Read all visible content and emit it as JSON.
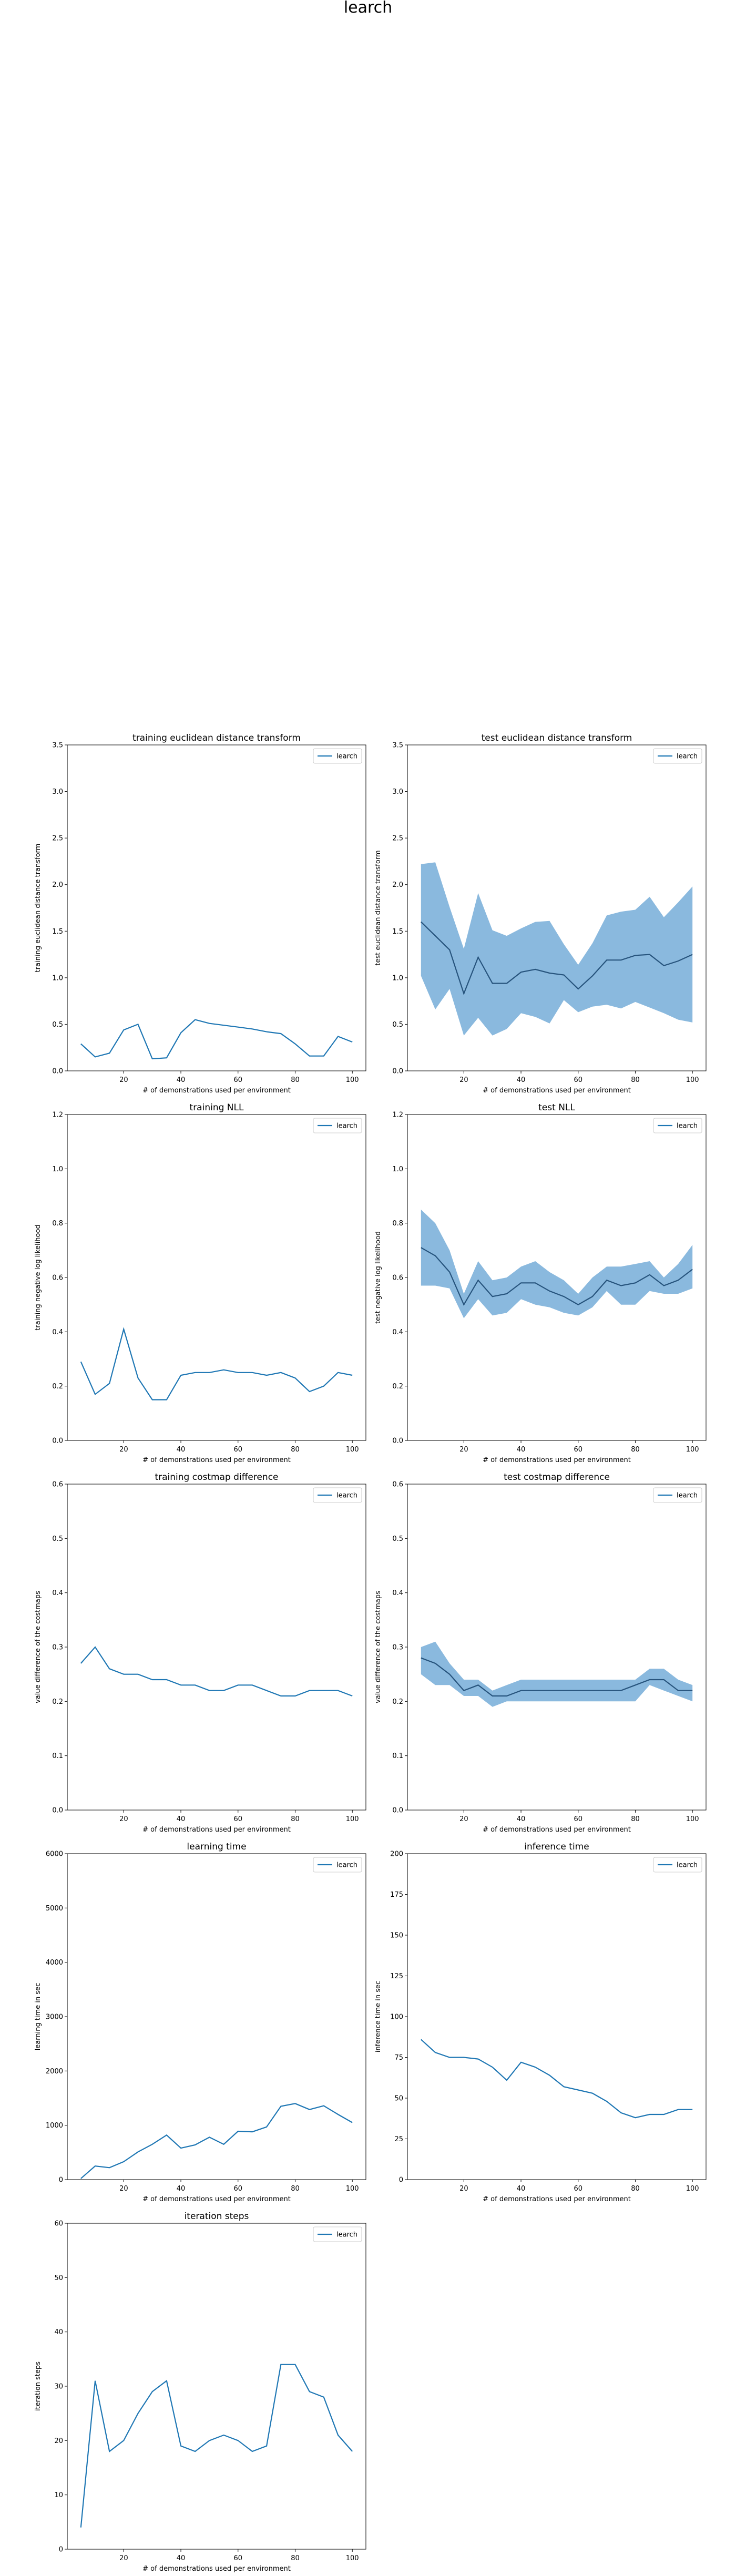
{
  "suptitle": "learch",
  "colors": {
    "line": "#1f77b4",
    "band": "#8ab9de",
    "mean": "#27547d",
    "axis": "#000000"
  },
  "chart_data": [
    {
      "type": "line",
      "title": "training euclidean distance transform",
      "xlabel": "# of demonstrations used per environment",
      "ylabel": "training euclidean distance transform",
      "xlim": [
        0.25,
        104.75
      ],
      "ylim": [
        0,
        3.5
      ],
      "xticks": [
        20,
        40,
        60,
        80,
        100
      ],
      "yticks": [
        0.0,
        0.5,
        1.0,
        1.5,
        2.0,
        2.5,
        3.0,
        3.5
      ],
      "ytick_labels": [
        "0.0",
        "0.5",
        "1.0",
        "1.5",
        "2.0",
        "2.5",
        "3.0",
        "3.5"
      ],
      "legend": "top-right",
      "series": [
        {
          "name": "learch",
          "x": [
            5,
            10,
            15,
            20,
            25,
            30,
            35,
            40,
            45,
            50,
            55,
            60,
            65,
            70,
            75,
            80,
            85,
            90,
            95,
            100
          ],
          "y": [
            0.29,
            0.15,
            0.19,
            0.44,
            0.5,
            0.13,
            0.14,
            0.41,
            0.55,
            0.51,
            0.49,
            0.47,
            0.45,
            0.42,
            0.4,
            0.29,
            0.16,
            0.16,
            0.37,
            0.31
          ]
        }
      ]
    },
    {
      "type": "area",
      "title": "test euclidean distance transform",
      "xlabel": "# of demonstrations used per environment",
      "ylabel": "test euclidean distance transform",
      "xlim": [
        0.25,
        104.75
      ],
      "ylim": [
        0,
        3.5
      ],
      "xticks": [
        20,
        40,
        60,
        80,
        100
      ],
      "yticks": [
        0.0,
        0.5,
        1.0,
        1.5,
        2.0,
        2.5,
        3.0,
        3.5
      ],
      "ytick_labels": [
        "0.0",
        "0.5",
        "1.0",
        "1.5",
        "2.0",
        "2.5",
        "3.0",
        "3.5"
      ],
      "legend": "top-right",
      "series": [
        {
          "name": "learch",
          "x": [
            5,
            10,
            15,
            20,
            25,
            30,
            35,
            40,
            45,
            50,
            55,
            60,
            65,
            70,
            75,
            80,
            85,
            90,
            95,
            100
          ],
          "y": [
            1.6,
            1.45,
            1.3,
            0.83,
            1.22,
            0.94,
            0.94,
            1.06,
            1.09,
            1.05,
            1.03,
            0.88,
            1.02,
            1.19,
            1.19,
            1.24,
            1.25,
            1.13,
            1.18,
            1.25
          ],
          "lower": [
            1.02,
            0.66,
            0.88,
            0.38,
            0.57,
            0.38,
            0.45,
            0.62,
            0.58,
            0.51,
            0.76,
            0.63,
            0.69,
            0.71,
            0.67,
            0.74,
            0.68,
            0.62,
            0.55,
            0.52
          ],
          "upper": [
            2.22,
            2.24,
            1.76,
            1.31,
            1.91,
            1.51,
            1.45,
            1.53,
            1.6,
            1.61,
            1.36,
            1.14,
            1.37,
            1.67,
            1.71,
            1.73,
            1.87,
            1.65,
            1.81,
            1.98
          ]
        }
      ]
    },
    {
      "type": "line",
      "title": "training NLL",
      "xlabel": "# of demonstrations used per environment",
      "ylabel": "training negative log likelihood",
      "xlim": [
        0.25,
        104.75
      ],
      "ylim": [
        0,
        1.2
      ],
      "xticks": [
        20,
        40,
        60,
        80,
        100
      ],
      "yticks": [
        0.0,
        0.2,
        0.4,
        0.6,
        0.8,
        1.0,
        1.2
      ],
      "ytick_labels": [
        "0.0",
        "0.2",
        "0.4",
        "0.6",
        "0.8",
        "1.0",
        "1.2"
      ],
      "legend": "top-right",
      "series": [
        {
          "name": "learch",
          "x": [
            5,
            10,
            15,
            20,
            25,
            30,
            35,
            40,
            45,
            50,
            55,
            60,
            65,
            70,
            75,
            80,
            85,
            90,
            95,
            100
          ],
          "y": [
            0.29,
            0.17,
            0.21,
            0.41,
            0.23,
            0.15,
            0.15,
            0.24,
            0.25,
            0.25,
            0.26,
            0.25,
            0.25,
            0.24,
            0.25,
            0.23,
            0.18,
            0.2,
            0.25,
            0.24
          ]
        }
      ]
    },
    {
      "type": "area",
      "title": "test NLL",
      "xlabel": "# of demonstrations used per environment",
      "ylabel": "test negative log likelihood",
      "xlim": [
        0.25,
        104.75
      ],
      "ylim": [
        0,
        1.2
      ],
      "xticks": [
        20,
        40,
        60,
        80,
        100
      ],
      "yticks": [
        0.0,
        0.2,
        0.4,
        0.6,
        0.8,
        1.0,
        1.2
      ],
      "ytick_labels": [
        "0.0",
        "0.2",
        "0.4",
        "0.6",
        "0.8",
        "1.0",
        "1.2"
      ],
      "legend": "top-right",
      "series": [
        {
          "name": "learch",
          "x": [
            5,
            10,
            15,
            20,
            25,
            30,
            35,
            40,
            45,
            50,
            55,
            60,
            65,
            70,
            75,
            80,
            85,
            90,
            95,
            100
          ],
          "y": [
            0.71,
            0.68,
            0.62,
            0.5,
            0.59,
            0.53,
            0.54,
            0.58,
            0.58,
            0.55,
            0.53,
            0.5,
            0.53,
            0.59,
            0.57,
            0.58,
            0.61,
            0.57,
            0.59,
            0.63
          ],
          "lower": [
            0.57,
            0.57,
            0.56,
            0.45,
            0.52,
            0.46,
            0.47,
            0.52,
            0.5,
            0.49,
            0.47,
            0.46,
            0.49,
            0.55,
            0.5,
            0.5,
            0.55,
            0.54,
            0.54,
            0.56
          ],
          "upper": [
            0.85,
            0.8,
            0.7,
            0.54,
            0.66,
            0.59,
            0.6,
            0.64,
            0.66,
            0.62,
            0.59,
            0.54,
            0.6,
            0.64,
            0.64,
            0.65,
            0.66,
            0.6,
            0.65,
            0.72
          ]
        }
      ]
    },
    {
      "type": "line",
      "title": "training costmap difference",
      "xlabel": "# of demonstrations used per environment",
      "ylabel": "value difference of the costmaps",
      "xlim": [
        0.25,
        104.75
      ],
      "ylim": [
        0,
        0.6
      ],
      "xticks": [
        20,
        40,
        60,
        80,
        100
      ],
      "yticks": [
        0.0,
        0.1,
        0.2,
        0.3,
        0.4,
        0.5,
        0.6
      ],
      "ytick_labels": [
        "0.0",
        "0.1",
        "0.2",
        "0.3",
        "0.4",
        "0.5",
        "0.6"
      ],
      "legend": "top-right",
      "series": [
        {
          "name": "learch",
          "x": [
            5,
            10,
            15,
            20,
            25,
            30,
            35,
            40,
            45,
            50,
            55,
            60,
            65,
            70,
            75,
            80,
            85,
            90,
            95,
            100
          ],
          "y": [
            0.27,
            0.3,
            0.26,
            0.25,
            0.25,
            0.24,
            0.24,
            0.23,
            0.23,
            0.22,
            0.22,
            0.23,
            0.23,
            0.22,
            0.21,
            0.21,
            0.22,
            0.22,
            0.22,
            0.21
          ]
        }
      ]
    },
    {
      "type": "area",
      "title": "test costmap difference",
      "xlabel": "# of demonstrations used per environment",
      "ylabel": "value difference of the costmaps",
      "xlim": [
        0.25,
        104.75
      ],
      "ylim": [
        0,
        0.6
      ],
      "xticks": [
        20,
        40,
        60,
        80,
        100
      ],
      "yticks": [
        0.0,
        0.1,
        0.2,
        0.3,
        0.4,
        0.5,
        0.6
      ],
      "ytick_labels": [
        "0.0",
        "0.1",
        "0.2",
        "0.3",
        "0.4",
        "0.5",
        "0.6"
      ],
      "legend": "top-right",
      "series": [
        {
          "name": "learch",
          "x": [
            5,
            10,
            15,
            20,
            25,
            30,
            35,
            40,
            45,
            50,
            55,
            60,
            65,
            70,
            75,
            80,
            85,
            90,
            95,
            100
          ],
          "y": [
            0.28,
            0.27,
            0.25,
            0.22,
            0.23,
            0.21,
            0.21,
            0.22,
            0.22,
            0.22,
            0.22,
            0.22,
            0.22,
            0.22,
            0.22,
            0.23,
            0.24,
            0.24,
            0.22,
            0.22
          ],
          "lower": [
            0.25,
            0.23,
            0.23,
            0.21,
            0.21,
            0.19,
            0.2,
            0.2,
            0.2,
            0.2,
            0.2,
            0.2,
            0.2,
            0.2,
            0.2,
            0.2,
            0.23,
            0.22,
            0.21,
            0.2
          ],
          "upper": [
            0.3,
            0.31,
            0.27,
            0.24,
            0.24,
            0.22,
            0.23,
            0.24,
            0.24,
            0.24,
            0.24,
            0.24,
            0.24,
            0.24,
            0.24,
            0.24,
            0.26,
            0.26,
            0.24,
            0.23
          ]
        }
      ]
    },
    {
      "type": "line",
      "title": "learning time",
      "xlabel": "# of demonstrations used per environment",
      "ylabel": "learning time in sec",
      "xlim": [
        0.25,
        104.75
      ],
      "ylim": [
        0,
        6000
      ],
      "xticks": [
        20,
        40,
        60,
        80,
        100
      ],
      "yticks": [
        0,
        1000,
        2000,
        3000,
        4000,
        5000,
        6000
      ],
      "ytick_labels": [
        "0",
        "1000",
        "2000",
        "3000",
        "4000",
        "5000",
        "6000"
      ],
      "legend": "top-right",
      "series": [
        {
          "name": "learch",
          "x": [
            5,
            10,
            15,
            20,
            25,
            30,
            35,
            40,
            45,
            50,
            55,
            60,
            65,
            70,
            75,
            80,
            85,
            90,
            95,
            100
          ],
          "y": [
            20,
            250,
            220,
            330,
            510,
            650,
            820,
            580,
            640,
            780,
            650,
            890,
            880,
            970,
            1350,
            1400,
            1290,
            1360,
            1200,
            1050
          ]
        }
      ]
    },
    {
      "type": "line",
      "title": "inference time",
      "xlabel": "# of demonstrations used per environment",
      "ylabel": "inference time in sec",
      "xlim": [
        0.25,
        104.75
      ],
      "ylim": [
        0,
        200
      ],
      "xticks": [
        20,
        40,
        60,
        80,
        100
      ],
      "yticks": [
        0,
        25,
        50,
        75,
        100,
        125,
        150,
        175,
        200
      ],
      "ytick_labels": [
        "0",
        "25",
        "50",
        "75",
        "100",
        "125",
        "150",
        "175",
        "200"
      ],
      "legend": "top-right",
      "series": [
        {
          "name": "learch",
          "x": [
            5,
            10,
            15,
            20,
            25,
            30,
            35,
            40,
            45,
            50,
            55,
            60,
            65,
            70,
            75,
            80,
            85,
            90,
            95,
            100
          ],
          "y": [
            86,
            78,
            75,
            75,
            74,
            69,
            61,
            72,
            69,
            64,
            57,
            55,
            53,
            48,
            41,
            38,
            40,
            40,
            43,
            43
          ]
        }
      ]
    },
    {
      "type": "line",
      "title": "iteration steps",
      "xlabel": "# of demonstrations used per environment",
      "ylabel": "iteration steps",
      "xlim": [
        0.25,
        104.75
      ],
      "ylim": [
        0,
        60
      ],
      "xticks": [
        20,
        40,
        60,
        80,
        100
      ],
      "yticks": [
        0,
        10,
        20,
        30,
        40,
        50,
        60
      ],
      "ytick_labels": [
        "0",
        "10",
        "20",
        "30",
        "40",
        "50",
        "60"
      ],
      "legend": "top-right",
      "series": [
        {
          "name": "learch",
          "x": [
            5,
            10,
            15,
            20,
            25,
            30,
            35,
            40,
            45,
            50,
            55,
            60,
            65,
            70,
            75,
            80,
            85,
            90,
            95,
            100
          ],
          "y": [
            4,
            31,
            18,
            20,
            25,
            29,
            31,
            19,
            18,
            20,
            21,
            20,
            18,
            19,
            34,
            34,
            29,
            28,
            21,
            18
          ]
        }
      ]
    }
  ]
}
